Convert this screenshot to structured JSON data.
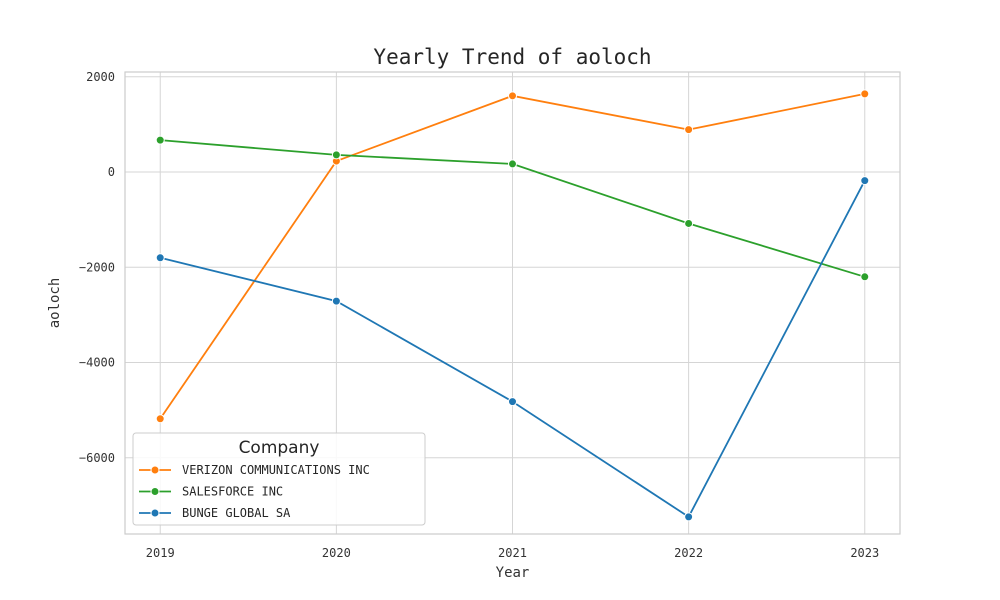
{
  "chart_data": {
    "type": "line",
    "title": "Yearly Trend of aoloch",
    "xlabel": "Year",
    "ylabel": "aoloch",
    "x": [
      "2019",
      "2020",
      "2021",
      "2022",
      "2023"
    ],
    "xlim": [
      2018.8,
      2023.2
    ],
    "ylim": [
      -7600,
      2100
    ],
    "yticks": [
      2000,
      0,
      -2000,
      -4000,
      -6000
    ],
    "ytick_labels": [
      "2000",
      "0",
      "−2000",
      "−4000",
      "−6000"
    ],
    "grid": true,
    "legend": {
      "title": "Company",
      "placement": "lower-left"
    },
    "series": [
      {
        "name": "VERIZON COMMUNICATIONS INC",
        "color": "#ff7f0e",
        "values": [
          -5180,
          230,
          1600,
          890,
          1640
        ]
      },
      {
        "name": "SALESFORCE INC",
        "color": "#2ca02c",
        "values": [
          670,
          360,
          170,
          -1080,
          -2200
        ]
      },
      {
        "name": "BUNGE GLOBAL SA",
        "color": "#1f77b4",
        "values": [
          -1800,
          -2710,
          -4820,
          -7240,
          -180
        ]
      }
    ]
  }
}
